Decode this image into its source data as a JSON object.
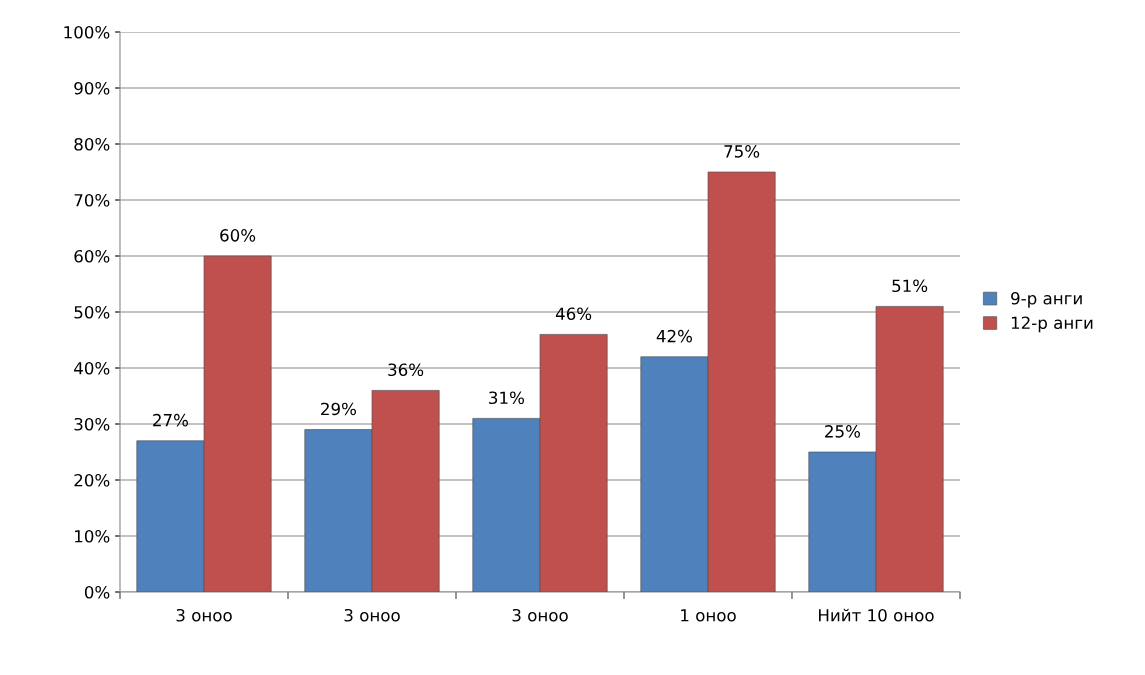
{
  "chart_data": {
    "type": "bar",
    "categories": [
      "3 оноо",
      "3 оноо",
      "3 оноо",
      "1 оноо",
      "Нийт 10 оноо"
    ],
    "series": [
      {
        "name": "9-р анги",
        "color": "#4f81bd",
        "values": [
          27,
          29,
          31,
          42,
          25
        ],
        "value_labels": [
          "27%",
          "29%",
          "31%",
          "42%",
          "25%"
        ]
      },
      {
        "name": "12-р анги",
        "color": "#c0504d",
        "values": [
          60,
          36,
          46,
          75,
          51
        ],
        "value_labels": [
          "60%",
          "36%",
          "46%",
          "75%",
          "51%"
        ]
      }
    ],
    "ylim": [
      0,
      100
    ],
    "yticks": [
      {
        "value": 0,
        "label": "0%"
      },
      {
        "value": 10,
        "label": "10%"
      },
      {
        "value": 20,
        "label": "20%"
      },
      {
        "value": 30,
        "label": "30%"
      },
      {
        "value": 40,
        "label": "40%"
      },
      {
        "value": 50,
        "label": "50%"
      },
      {
        "value": 60,
        "label": "60%"
      },
      {
        "value": 70,
        "label": "70%"
      },
      {
        "value": 80,
        "label": "80%"
      },
      {
        "value": 90,
        "label": "90%"
      },
      {
        "value": 100,
        "label": "100%"
      }
    ],
    "grid": "y",
    "legend": "right"
  }
}
